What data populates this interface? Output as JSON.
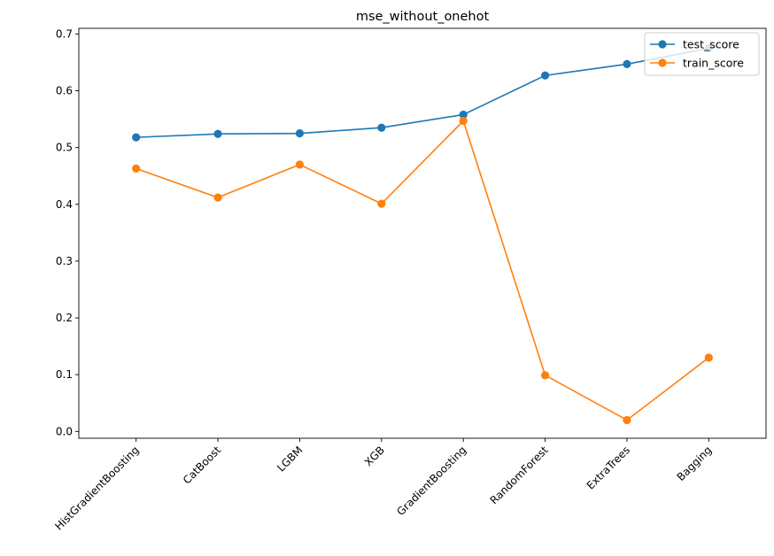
{
  "chart_data": {
    "type": "line",
    "title": "mse_without_onehot",
    "xlabel": "",
    "ylabel": "",
    "categories": [
      "HistGradientBoosting",
      "CatBoost",
      "LGBM",
      "XGB",
      "GradientBoosting",
      "RandomForest",
      "ExtraTrees",
      "Bagging"
    ],
    "ylim": [
      -0.012,
      0.71
    ],
    "yticks": [
      0.0,
      0.1,
      0.2,
      0.3,
      0.4,
      0.5,
      0.6,
      0.7
    ],
    "ytick_labels": [
      "0.0",
      "0.1",
      "0.2",
      "0.3",
      "0.4",
      "0.5",
      "0.6",
      "0.7"
    ],
    "grid": false,
    "legend_position": "top-right",
    "series": [
      {
        "name": "test_score",
        "color": "#1f77b4",
        "marker": "circle",
        "values": [
          0.518,
          0.524,
          0.525,
          0.535,
          0.558,
          0.627,
          0.647,
          0.675
        ]
      },
      {
        "name": "train_score",
        "color": "#ff7f0e",
        "marker": "circle",
        "values": [
          0.463,
          0.412,
          0.47,
          0.401,
          0.547,
          0.099,
          0.02,
          0.13
        ]
      }
    ]
  }
}
